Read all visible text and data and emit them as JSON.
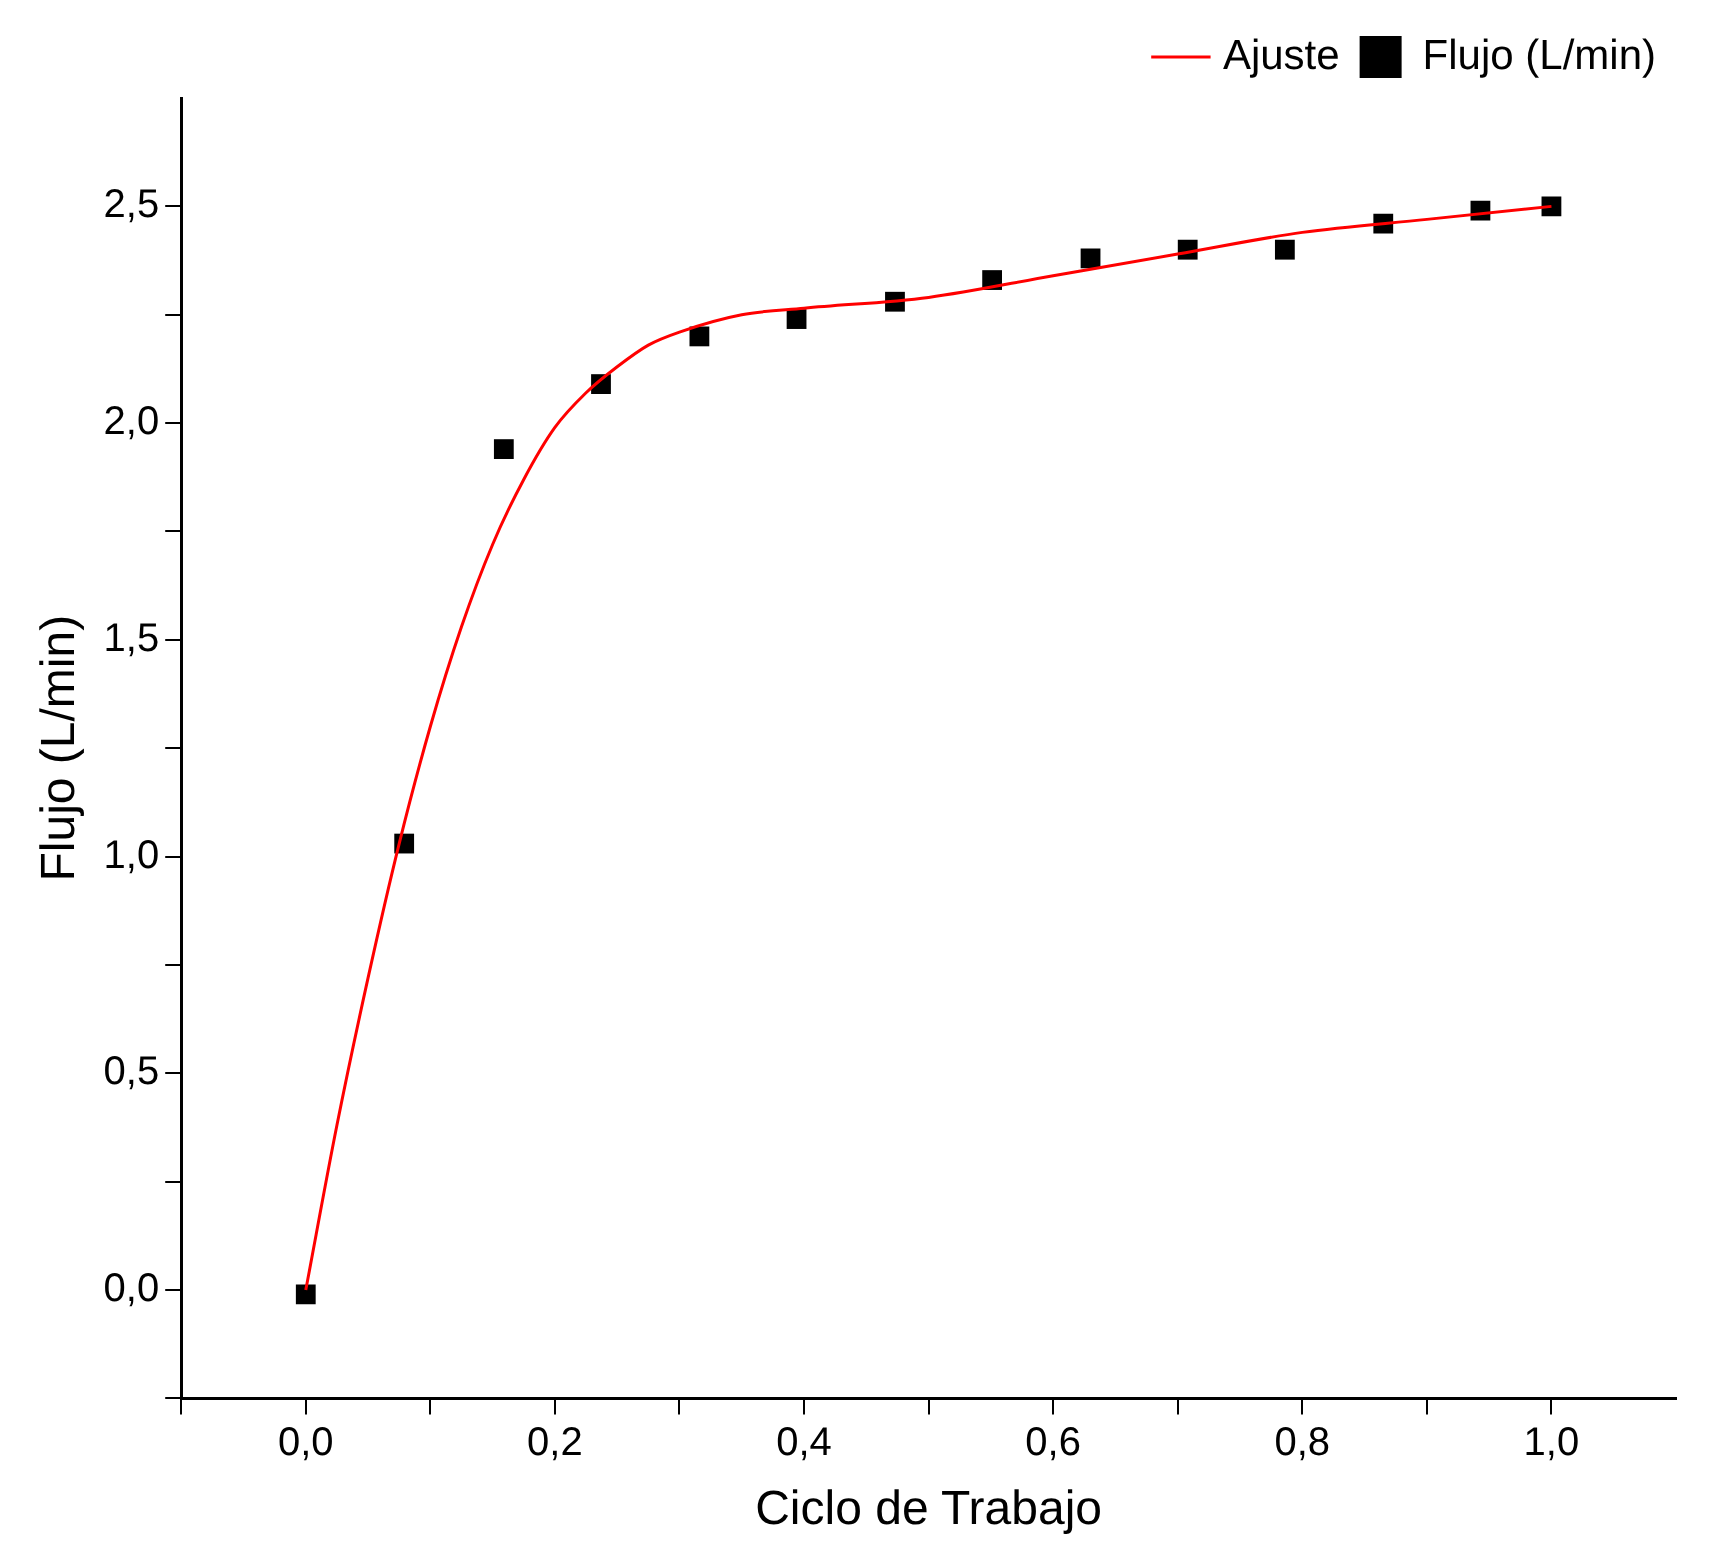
{
  "chart_data": {
    "type": "scatter",
    "xlabel": "Ciclo de Trabajo",
    "ylabel": "Flujo (L/min)",
    "xlim": [
      -0.1,
      1.1
    ],
    "ylim": [
      -0.25,
      2.75
    ],
    "xticks": [
      {
        "value": -0.1,
        "label": null
      },
      {
        "value": 0,
        "label": "0,0"
      },
      {
        "value": 0.1,
        "label": null
      },
      {
        "value": 0.2,
        "label": "0,2"
      },
      {
        "value": 0.3,
        "label": null
      },
      {
        "value": 0.4,
        "label": "0,4"
      },
      {
        "value": 0.5,
        "label": null
      },
      {
        "value": 0.6,
        "label": "0,6"
      },
      {
        "value": 0.7,
        "label": null
      },
      {
        "value": 0.8,
        "label": "0,8"
      },
      {
        "value": 0.9,
        "label": null
      },
      {
        "value": 1.0,
        "label": "1,0"
      }
    ],
    "yticks": [
      {
        "value": -0.25,
        "label": null
      },
      {
        "value": 0,
        "label": "0,0"
      },
      {
        "value": 0.25,
        "label": null
      },
      {
        "value": 0.5,
        "label": "0,5"
      },
      {
        "value": 0.75,
        "label": null
      },
      {
        "value": 1.0,
        "label": "1,0"
      },
      {
        "value": 1.25,
        "label": null
      },
      {
        "value": 1.5,
        "label": "1,5"
      },
      {
        "value": 1.75,
        "label": null
      },
      {
        "value": 2.0,
        "label": "2,0"
      },
      {
        "value": 2.25,
        "label": null
      },
      {
        "value": 2.5,
        "label": "2,5"
      }
    ],
    "grid": false,
    "legend": "top right",
    "series": [
      {
        "name": "Flujo (L/min)",
        "marker": "square",
        "color": "#000000",
        "x": [
          0,
          0.079,
          0.159,
          0.237,
          0.316,
          0.394,
          0.473,
          0.551,
          0.63,
          0.708,
          0.786,
          0.865,
          0.943,
          1.0
        ],
        "values": [
          -0.01,
          1.03,
          1.94,
          2.09,
          2.2,
          2.24,
          2.28,
          2.33,
          2.38,
          2.4,
          2.4,
          2.46,
          2.49,
          2.5
        ]
      },
      {
        "name": "Ajuste",
        "type": "line",
        "marker": "none",
        "line_style": "solid",
        "color": "#ff0000",
        "x": [
          0,
          0.025,
          0.05,
          0.075,
          0.1,
          0.125,
          0.15,
          0.175,
          0.2,
          0.225,
          0.25,
          0.275,
          0.3,
          0.35,
          0.4,
          0.5,
          0.6,
          0.7,
          0.8,
          0.9,
          1.0
        ],
        "values": [
          0,
          0.38,
          0.72,
          1.03,
          1.3,
          1.53,
          1.72,
          1.87,
          1.99,
          2.07,
          2.13,
          2.18,
          2.21,
          2.25,
          2.265,
          2.29,
          2.34,
          2.39,
          2.44,
          2.47,
          2.5
        ]
      }
    ]
  }
}
